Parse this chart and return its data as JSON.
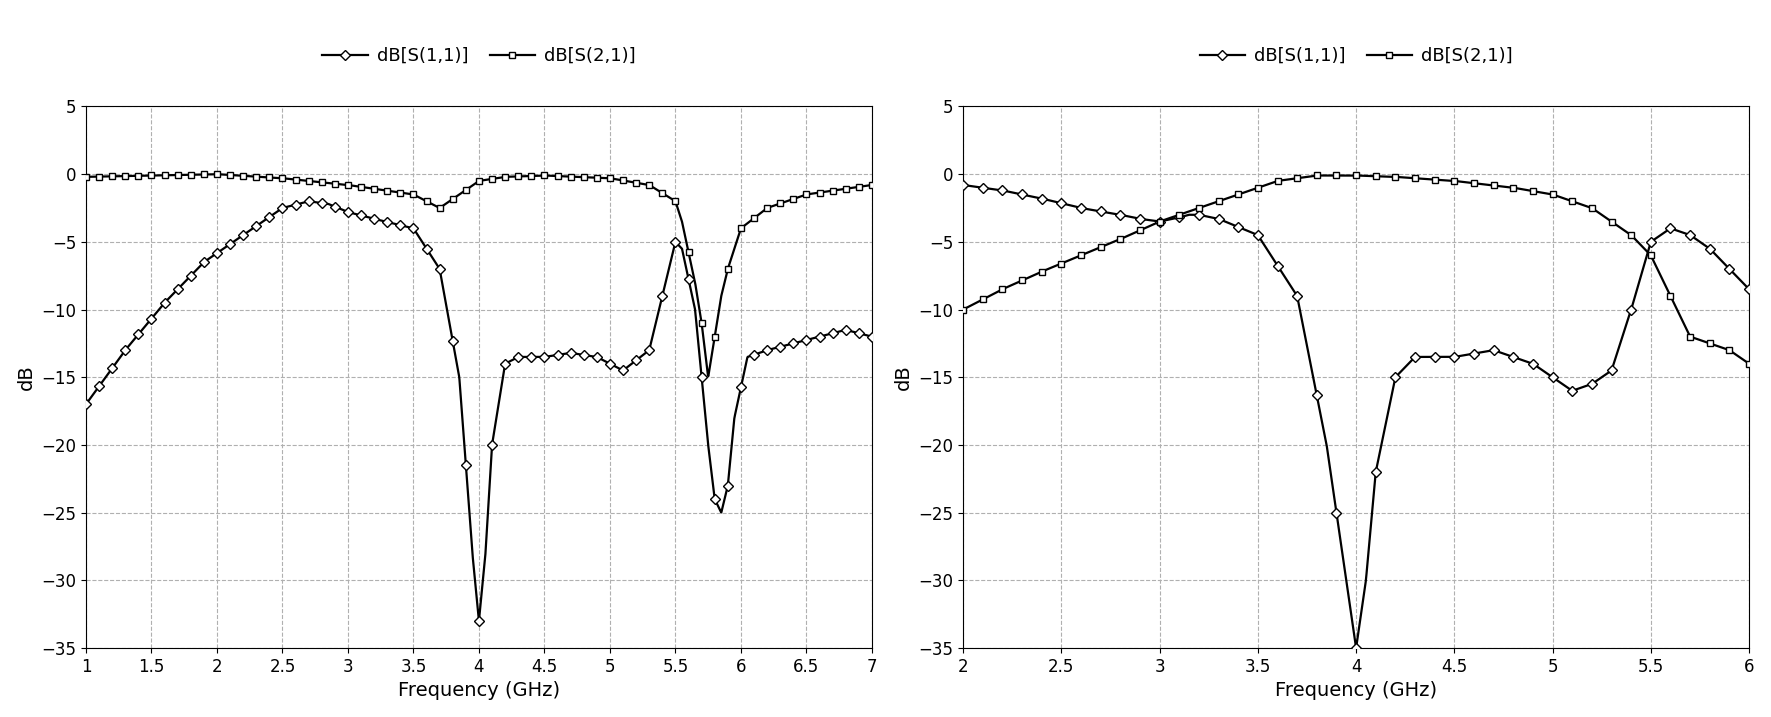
{
  "plot1": {
    "xmin": 1.0,
    "xmax": 7.0,
    "xticks": [
      1.0,
      1.5,
      2.0,
      2.5,
      3.0,
      3.5,
      4.0,
      4.5,
      5.0,
      5.5,
      6.0,
      6.5,
      7.0
    ],
    "ymin": -35,
    "ymax": 5,
    "yticks": [
      5,
      0,
      -5,
      -10,
      -15,
      -20,
      -25,
      -30,
      -35
    ],
    "xlabel": "Frequency (GHz)",
    "ylabel": "dB",
    "s11_knots": [
      [
        1.0,
        -17.0
      ],
      [
        1.3,
        -13.0
      ],
      [
        1.6,
        -9.5
      ],
      [
        1.9,
        -6.5
      ],
      [
        2.2,
        -4.5
      ],
      [
        2.5,
        -2.5
      ],
      [
        2.7,
        -2.0
      ],
      [
        2.85,
        -2.2
      ],
      [
        3.0,
        -2.8
      ],
      [
        3.2,
        -3.3
      ],
      [
        3.5,
        -4.0
      ],
      [
        3.7,
        -7.0
      ],
      [
        3.85,
        -15.0
      ],
      [
        3.95,
        -28.0
      ],
      [
        4.0,
        -33.0
      ],
      [
        4.05,
        -28.0
      ],
      [
        4.1,
        -20.0
      ],
      [
        4.2,
        -14.0
      ],
      [
        4.3,
        -13.5
      ],
      [
        4.5,
        -13.5
      ],
      [
        4.7,
        -13.2
      ],
      [
        4.9,
        -13.5
      ],
      [
        5.1,
        -14.5
      ],
      [
        5.3,
        -13.0
      ],
      [
        5.45,
        -7.0
      ],
      [
        5.5,
        -5.0
      ],
      [
        5.55,
        -5.5
      ],
      [
        5.65,
        -10.0
      ],
      [
        5.75,
        -20.0
      ],
      [
        5.8,
        -24.0
      ],
      [
        5.85,
        -25.0
      ],
      [
        5.9,
        -23.0
      ],
      [
        5.95,
        -18.0
      ],
      [
        6.05,
        -13.5
      ],
      [
        6.2,
        -13.0
      ],
      [
        6.4,
        -12.5
      ],
      [
        6.6,
        -12.0
      ],
      [
        6.8,
        -11.5
      ],
      [
        7.0,
        -12.0
      ]
    ],
    "s21_knots": [
      [
        1.0,
        -0.2
      ],
      [
        1.5,
        -0.1
      ],
      [
        2.0,
        0.0
      ],
      [
        2.5,
        -0.3
      ],
      [
        3.0,
        -0.8
      ],
      [
        3.5,
        -1.5
      ],
      [
        3.7,
        -2.5
      ],
      [
        3.85,
        -1.5
      ],
      [
        4.0,
        -0.5
      ],
      [
        4.2,
        -0.2
      ],
      [
        4.5,
        -0.1
      ],
      [
        5.0,
        -0.3
      ],
      [
        5.3,
        -0.8
      ],
      [
        5.5,
        -2.0
      ],
      [
        5.55,
        -3.5
      ],
      [
        5.65,
        -8.0
      ],
      [
        5.7,
        -11.0
      ],
      [
        5.75,
        -15.0
      ],
      [
        5.8,
        -12.0
      ],
      [
        5.85,
        -9.0
      ],
      [
        5.9,
        -7.0
      ],
      [
        6.0,
        -4.0
      ],
      [
        6.2,
        -2.5
      ],
      [
        6.5,
        -1.5
      ],
      [
        7.0,
        -0.8
      ]
    ]
  },
  "plot2": {
    "xmin": 2.0,
    "xmax": 6.0,
    "xticks": [
      2.0,
      2.5,
      3.0,
      3.5,
      4.0,
      4.5,
      5.0,
      5.5,
      6.0
    ],
    "ymin": -35,
    "ymax": 5,
    "yticks": [
      5,
      0,
      -5,
      -10,
      -15,
      -20,
      -25,
      -30,
      -35
    ],
    "xlabel": "Frequency (GHz)",
    "ylabel": "dB",
    "s11_knots": [
      [
        2.0,
        -0.8
      ],
      [
        2.2,
        -1.2
      ],
      [
        2.4,
        -1.8
      ],
      [
        2.6,
        -2.5
      ],
      [
        2.8,
        -3.0
      ],
      [
        2.9,
        -3.3
      ],
      [
        3.0,
        -3.5
      ],
      [
        3.1,
        -3.2
      ],
      [
        3.15,
        -3.0
      ],
      [
        3.2,
        -3.0
      ],
      [
        3.3,
        -3.3
      ],
      [
        3.5,
        -4.5
      ],
      [
        3.7,
        -9.0
      ],
      [
        3.85,
        -20.0
      ],
      [
        3.95,
        -30.0
      ],
      [
        4.0,
        -35.0
      ],
      [
        4.05,
        -30.0
      ],
      [
        4.1,
        -22.0
      ],
      [
        4.2,
        -15.0
      ],
      [
        4.3,
        -13.5
      ],
      [
        4.5,
        -13.5
      ],
      [
        4.7,
        -13.0
      ],
      [
        4.9,
        -14.0
      ],
      [
        5.0,
        -15.0
      ],
      [
        5.1,
        -16.0
      ],
      [
        5.2,
        -15.5
      ],
      [
        5.3,
        -14.5
      ],
      [
        5.4,
        -10.0
      ],
      [
        5.5,
        -5.0
      ],
      [
        5.6,
        -4.0
      ],
      [
        5.7,
        -4.5
      ],
      [
        5.8,
        -5.5
      ],
      [
        5.9,
        -7.0
      ],
      [
        6.0,
        -8.5
      ]
    ],
    "s21_knots": [
      [
        2.0,
        -10.0
      ],
      [
        2.2,
        -8.5
      ],
      [
        2.4,
        -7.2
      ],
      [
        2.6,
        -6.0
      ],
      [
        2.8,
        -4.8
      ],
      [
        3.0,
        -3.5
      ],
      [
        3.2,
        -2.5
      ],
      [
        3.4,
        -1.5
      ],
      [
        3.5,
        -1.0
      ],
      [
        3.6,
        -0.5
      ],
      [
        3.7,
        -0.3
      ],
      [
        3.8,
        -0.1
      ],
      [
        4.0,
        -0.1
      ],
      [
        4.2,
        -0.2
      ],
      [
        4.5,
        -0.5
      ],
      [
        4.8,
        -1.0
      ],
      [
        5.0,
        -1.5
      ],
      [
        5.2,
        -2.5
      ],
      [
        5.4,
        -4.5
      ],
      [
        5.5,
        -6.0
      ],
      [
        5.6,
        -9.0
      ],
      [
        5.7,
        -12.0
      ],
      [
        5.8,
        -12.5
      ],
      [
        5.9,
        -13.0
      ],
      [
        6.0,
        -14.0
      ]
    ]
  },
  "legend_labels": [
    "dB[S(1,1)]",
    "dB[S(2,1)]"
  ],
  "line_color": "#000000",
  "marker_size": 5,
  "grid_color": "#b0b0b0",
  "grid_style": "--",
  "background_color": "#ffffff",
  "axis_fontsize": 14,
  "legend_fontsize": 13,
  "tick_fontsize": 12,
  "linewidth": 1.6
}
